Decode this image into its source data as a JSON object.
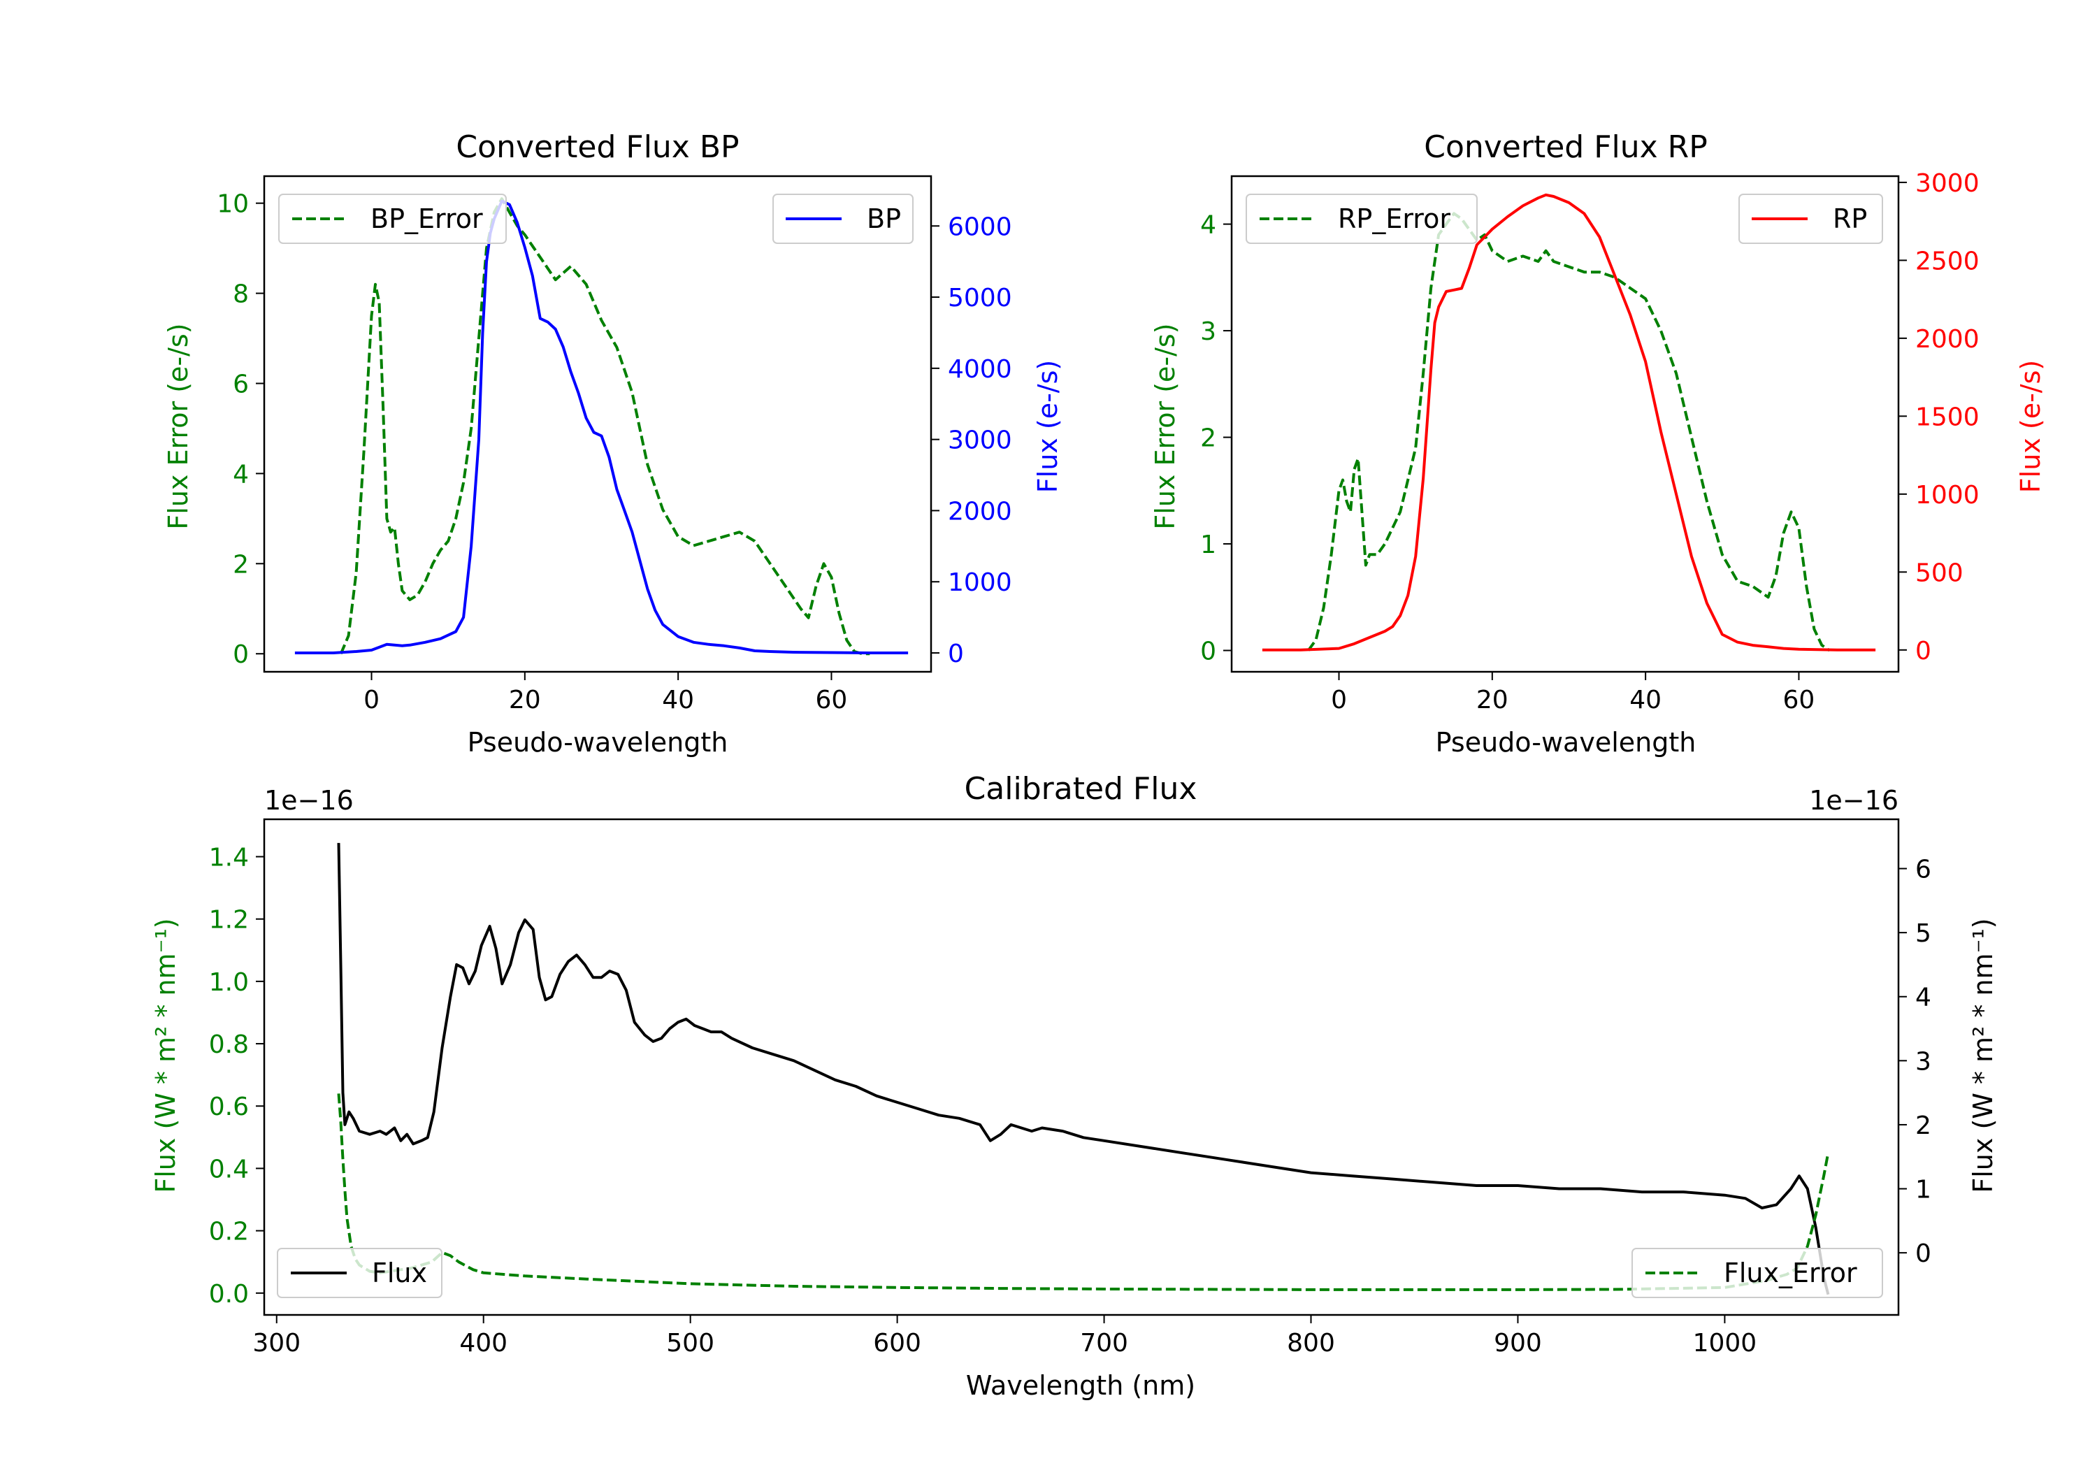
{
  "colors": {
    "green": "#008000",
    "blue": "#0000ff",
    "red": "#ff0000",
    "black": "#000000",
    "axis": "#000000"
  },
  "chart_data": [
    {
      "id": "bp",
      "type": "line",
      "title": "Converted Flux BP",
      "xlabel": "Pseudo-wavelength",
      "ylabel_left": "Flux Error (e-/s)",
      "ylabel_right": "Flux (e-/s)",
      "xlim": [
        -14,
        73
      ],
      "ylim_left": [
        -0.4,
        10.6
      ],
      "ylim_right": [
        -265,
        6700
      ],
      "xticks": [
        0,
        20,
        40,
        60
      ],
      "yticks_left": [
        0,
        2,
        4,
        6,
        8,
        10
      ],
      "yticks_right": [
        0,
        1000,
        2000,
        3000,
        4000,
        5000,
        6000
      ],
      "legend_left": "BP_Error",
      "legend_right": "BP",
      "series": [
        {
          "name": "BP_Error",
          "axis": "left",
          "color": "green",
          "dash": true,
          "x": [
            -4,
            -3,
            -2,
            -1,
            0,
            0.5,
            1,
            1.5,
            2,
            2.5,
            3,
            3.5,
            4,
            5,
            6,
            7,
            8,
            9,
            10,
            11,
            12,
            13,
            14,
            15,
            16,
            17,
            18,
            19,
            20,
            22,
            24,
            26,
            28,
            30,
            32,
            34,
            36,
            38,
            40,
            42,
            44,
            46,
            48,
            50,
            52,
            54,
            56,
            57,
            58,
            59,
            60,
            61,
            62,
            63,
            64,
            65
          ],
          "y": [
            0.0,
            0.4,
            1.8,
            4.5,
            7.5,
            8.2,
            7.8,
            5.5,
            3.0,
            2.7,
            2.8,
            2.0,
            1.4,
            1.2,
            1.3,
            1.6,
            2.0,
            2.3,
            2.5,
            3.0,
            3.8,
            5.0,
            7.0,
            9.0,
            9.8,
            10.1,
            9.8,
            9.5,
            9.3,
            8.8,
            8.3,
            8.6,
            8.2,
            7.4,
            6.8,
            5.8,
            4.2,
            3.2,
            2.6,
            2.4,
            2.5,
            2.6,
            2.7,
            2.5,
            2.0,
            1.5,
            1.0,
            0.8,
            1.5,
            2.0,
            1.7,
            0.9,
            0.3,
            0.05,
            0.0,
            0.0
          ]
        },
        {
          "name": "BP",
          "axis": "right",
          "color": "blue",
          "dash": false,
          "x": [
            -10,
            -5,
            -2,
            0,
            1,
            2,
            3,
            4,
            5,
            7,
            9,
            11,
            12,
            13,
            14,
            14.5,
            15,
            15.5,
            16,
            17,
            18,
            19,
            20,
            21,
            22,
            23,
            24,
            25,
            26,
            27,
            28,
            29,
            30,
            31,
            32,
            33,
            34,
            35,
            36,
            37,
            38,
            40,
            42,
            44,
            46,
            48,
            50,
            52,
            55,
            60,
            65,
            70
          ],
          "y": [
            0,
            0,
            20,
            40,
            80,
            120,
            110,
            100,
            110,
            150,
            200,
            300,
            500,
            1500,
            3000,
            4500,
            5500,
            5900,
            6100,
            6350,
            6300,
            6050,
            5700,
            5300,
            4700,
            4650,
            4550,
            4300,
            3950,
            3650,
            3300,
            3100,
            3050,
            2750,
            2300,
            2000,
            1700,
            1300,
            900,
            600,
            400,
            230,
            150,
            120,
            100,
            70,
            30,
            20,
            10,
            5,
            0,
            0
          ]
        }
      ]
    },
    {
      "id": "rp",
      "type": "line",
      "title": "Converted Flux RP",
      "xlabel": "Pseudo-wavelength",
      "ylabel_left": "Flux Error (e-/s)",
      "ylabel_right": "Flux (e-/s)",
      "xlim": [
        -14,
        73
      ],
      "ylim_left": [
        -0.2,
        4.45
      ],
      "ylim_right": [
        -140,
        3040
      ],
      "xticks": [
        0,
        20,
        40,
        60
      ],
      "yticks_left": [
        0,
        1,
        2,
        3,
        4
      ],
      "yticks_right": [
        0,
        500,
        1000,
        1500,
        2000,
        2500,
        3000
      ],
      "legend_left": "RP_Error",
      "legend_right": "RP",
      "series": [
        {
          "name": "RP_Error",
          "axis": "left",
          "color": "green",
          "dash": true,
          "x": [
            -4,
            -3,
            -2,
            -1,
            0,
            0.5,
            1,
            1.5,
            2,
            2.5,
            3,
            3.5,
            4,
            5,
            6,
            8,
            10,
            11,
            12,
            13,
            14,
            15,
            16,
            17,
            18,
            19,
            20,
            22,
            24,
            26,
            27,
            28,
            30,
            32,
            34,
            36,
            38,
            40,
            42,
            44,
            46,
            48,
            50,
            52,
            54,
            56,
            57,
            58,
            59,
            60,
            61,
            62,
            63,
            64
          ],
          "y": [
            0.0,
            0.1,
            0.4,
            0.9,
            1.5,
            1.6,
            1.4,
            1.3,
            1.7,
            1.8,
            1.3,
            0.8,
            0.9,
            0.9,
            1.0,
            1.3,
            1.9,
            2.6,
            3.4,
            3.9,
            4.0,
            4.1,
            4.05,
            3.95,
            3.85,
            3.9,
            3.75,
            3.65,
            3.7,
            3.65,
            3.75,
            3.65,
            3.6,
            3.55,
            3.55,
            3.5,
            3.4,
            3.3,
            3.0,
            2.6,
            2.0,
            1.4,
            0.9,
            0.65,
            0.6,
            0.5,
            0.7,
            1.1,
            1.3,
            1.15,
            0.6,
            0.2,
            0.05,
            0.0
          ]
        },
        {
          "name": "RP",
          "axis": "right",
          "color": "red",
          "dash": false,
          "x": [
            -10,
            -5,
            0,
            2,
            4,
            6,
            7,
            8,
            9,
            10,
            11,
            12,
            12.5,
            13,
            14,
            15,
            16,
            17,
            18,
            19,
            20,
            22,
            24,
            26,
            27,
            28,
            30,
            32,
            34,
            36,
            38,
            40,
            42,
            44,
            46,
            48,
            50,
            52,
            54,
            56,
            58,
            60,
            65,
            70
          ],
          "y": [
            0,
            0,
            10,
            40,
            80,
            120,
            150,
            220,
            350,
            600,
            1100,
            1800,
            2100,
            2200,
            2300,
            2310,
            2320,
            2450,
            2600,
            2650,
            2700,
            2780,
            2850,
            2900,
            2920,
            2910,
            2870,
            2800,
            2650,
            2400,
            2150,
            1850,
            1400,
            1000,
            600,
            300,
            100,
            50,
            30,
            20,
            10,
            5,
            0,
            0
          ]
        }
      ]
    },
    {
      "id": "cal",
      "type": "line",
      "title": "Calibrated Flux",
      "xlabel": "Wavelength (nm)",
      "ylabel_left": "Flux (W * m² * nm⁻¹)",
      "ylabel_right": "Flux (W * m² * nm⁻¹)",
      "offset_left": "1e−16",
      "offset_right": "1e−16",
      "xlim": [
        294,
        1084
      ],
      "ylim_left": [
        -0.07,
        1.52
      ],
      "ylim_right": [
        -0.97,
        6.77
      ],
      "xticks": [
        300,
        400,
        500,
        600,
        700,
        800,
        900,
        1000
      ],
      "yticks_left": [
        0.0,
        0.2,
        0.4,
        0.6,
        0.8,
        1.0,
        1.2,
        1.4
      ],
      "yticks_left_labels": [
        "0.0",
        "0.2",
        "0.4",
        "0.6",
        "0.8",
        "1.0",
        "1.2",
        "1.4"
      ],
      "yticks_right": [
        0,
        1,
        2,
        3,
        4,
        5,
        6
      ],
      "legend_left": "Flux",
      "legend_right": "Flux_Error",
      "series": [
        {
          "name": "Flux",
          "axis": "right",
          "color": "black",
          "dash": false,
          "x": [
            330,
            331,
            332,
            333,
            335,
            337,
            340,
            345,
            350,
            353,
            357,
            360,
            363,
            366,
            370,
            373,
            376,
            380,
            384,
            387,
            390,
            393,
            396,
            399,
            403,
            406,
            409,
            413,
            417,
            420,
            424,
            427,
            430,
            433,
            437,
            441,
            445,
            449,
            453,
            457,
            461,
            465,
            469,
            473,
            478,
            482,
            486,
            490,
            494,
            498,
            502,
            506,
            510,
            515,
            520,
            530,
            540,
            550,
            560,
            570,
            580,
            590,
            600,
            610,
            620,
            630,
            640,
            645,
            650,
            655,
            660,
            665,
            670,
            680,
            690,
            700,
            720,
            740,
            760,
            780,
            800,
            820,
            840,
            860,
            880,
            900,
            920,
            940,
            960,
            980,
            1000,
            1010,
            1018,
            1025,
            1032,
            1036,
            1040,
            1044,
            1048,
            1050
          ],
          "y": [
            6.4,
            4.5,
            2.5,
            2.0,
            2.2,
            2.1,
            1.9,
            1.85,
            1.9,
            1.85,
            1.95,
            1.75,
            1.85,
            1.7,
            1.75,
            1.8,
            2.2,
            3.2,
            4.0,
            4.5,
            4.45,
            4.2,
            4.4,
            4.8,
            5.1,
            4.75,
            4.2,
            4.5,
            5.0,
            5.2,
            5.05,
            4.3,
            3.95,
            4.0,
            4.35,
            4.55,
            4.65,
            4.5,
            4.3,
            4.3,
            4.4,
            4.35,
            4.1,
            3.6,
            3.4,
            3.3,
            3.35,
            3.5,
            3.6,
            3.65,
            3.55,
            3.5,
            3.45,
            3.45,
            3.35,
            3.2,
            3.1,
            3.0,
            2.85,
            2.7,
            2.6,
            2.45,
            2.35,
            2.25,
            2.15,
            2.1,
            2.0,
            1.75,
            1.85,
            2.0,
            1.95,
            1.9,
            1.95,
            1.9,
            1.8,
            1.75,
            1.65,
            1.55,
            1.45,
            1.35,
            1.25,
            1.2,
            1.15,
            1.1,
            1.05,
            1.05,
            1.0,
            1.0,
            0.95,
            0.95,
            0.9,
            0.85,
            0.7,
            0.75,
            1.0,
            1.2,
            1.0,
            0.4,
            -0.4,
            -0.65
          ]
        },
        {
          "name": "Flux_Error",
          "axis": "left",
          "color": "green",
          "dash": true,
          "x": [
            330,
            331,
            332,
            333,
            334,
            336,
            338,
            340,
            345,
            350,
            355,
            360,
            365,
            370,
            375,
            380,
            384,
            388,
            395,
            400,
            420,
            450,
            500,
            550,
            600,
            650,
            700,
            750,
            800,
            850,
            900,
            950,
            1000,
            1020,
            1030,
            1035,
            1040,
            1044,
            1048,
            1050
          ],
          "y": [
            0.64,
            0.55,
            0.43,
            0.33,
            0.24,
            0.15,
            0.11,
            0.09,
            0.07,
            0.065,
            0.07,
            0.075,
            0.08,
            0.09,
            0.1,
            0.13,
            0.12,
            0.1,
            0.075,
            0.065,
            0.055,
            0.045,
            0.03,
            0.022,
            0.018,
            0.015,
            0.013,
            0.012,
            0.011,
            0.011,
            0.011,
            0.012,
            0.018,
            0.04,
            0.06,
            0.08,
            0.15,
            0.25,
            0.38,
            0.45
          ]
        }
      ]
    }
  ]
}
